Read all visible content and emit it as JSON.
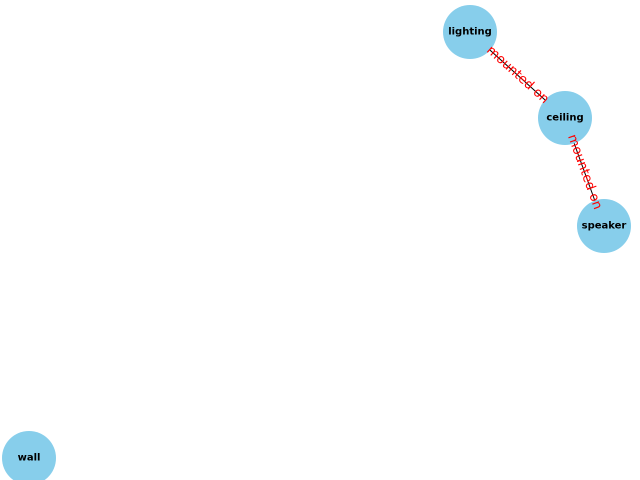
{
  "colors": {
    "node_fill": "#87ceeb",
    "edge_stroke": "#000000",
    "edge_label": "#ff0000"
  },
  "nodes": [
    {
      "id": "lighting",
      "label": "lighting"
    },
    {
      "id": "ceiling",
      "label": "ceiling"
    },
    {
      "id": "speaker",
      "label": "speaker"
    },
    {
      "id": "wall",
      "label": "wall"
    }
  ],
  "edges": [
    {
      "id": "lighting-ceiling",
      "source": "lighting",
      "target": "ceiling",
      "label": "mounted on"
    },
    {
      "id": "ceiling-speaker",
      "source": "ceiling",
      "target": "speaker",
      "label": "mounted on"
    }
  ]
}
